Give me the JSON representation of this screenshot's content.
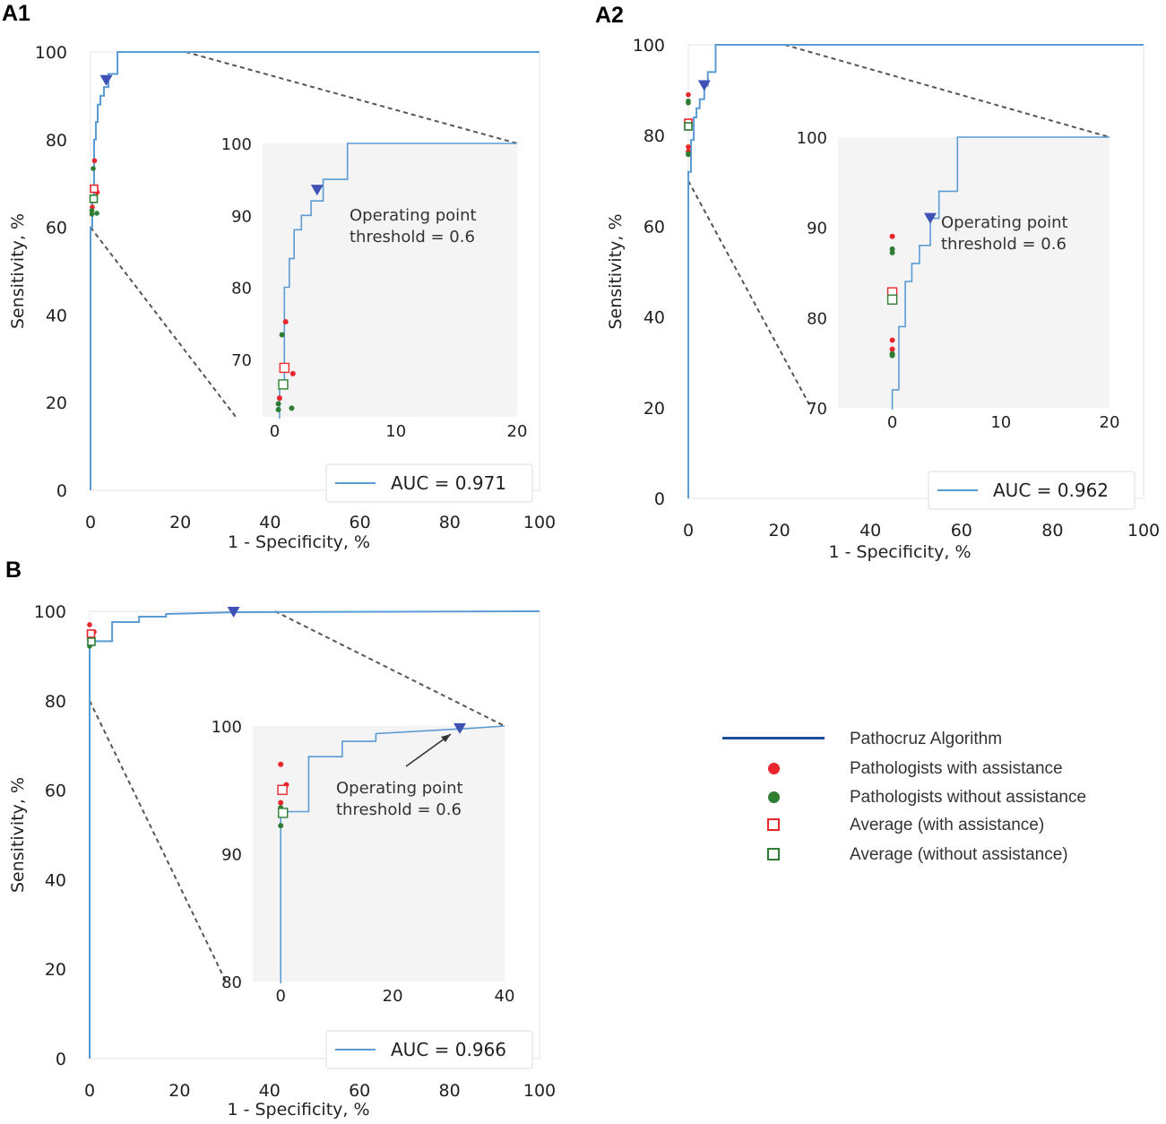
{
  "panels": [
    {
      "id": "A1",
      "label": "A1",
      "xlabel": "1 - Specificity, %",
      "ylabel": "Sensitivity, %",
      "auc_label": "AUC = 0.971"
    },
    {
      "id": "A2",
      "label": "A2",
      "xlabel": "1 - Specificity, %",
      "ylabel": "Sensitivity, %",
      "auc_label": "AUC = 0.962"
    },
    {
      "id": "B",
      "label": "B",
      "xlabel": "1 - Specificity, %",
      "ylabel": "Sensitivity, %",
      "auc_label": "AUC = 0.966"
    }
  ],
  "legend": {
    "items": [
      {
        "label": "Pathocruz Algorithm",
        "kind": "line",
        "color": "#1f4e9a"
      },
      {
        "label": "Pathologists with assistance",
        "kind": "dot",
        "color": "#e8262b"
      },
      {
        "label": "Pathologists without assistance",
        "kind": "dot",
        "color": "#2e7d32"
      },
      {
        "label": "Average (with assistance)",
        "kind": "square",
        "color": "#e8262b"
      },
      {
        "label": "Average (without assistance)",
        "kind": "square",
        "color": "#2e7d32"
      }
    ]
  },
  "colors": {
    "roc": "#5b9bd5",
    "operating_point": "#3f51b5",
    "with_assist": "#e8262b",
    "without_assist": "#2e7d32",
    "inset_bg": "#f4f4f4",
    "connector": "#555555"
  },
  "chart_data": [
    {
      "id": "A1",
      "type": "line",
      "title": "",
      "xlabel": "1 - Specificity, %",
      "ylabel": "Sensitivity, %",
      "xlim": [
        0,
        100
      ],
      "ylim": [
        0,
        100
      ],
      "xticks": [
        0,
        20,
        40,
        60,
        80,
        100
      ],
      "yticks": [
        0,
        20,
        40,
        60,
        80,
        100
      ],
      "series": [
        {
          "name": "Pathocruz Algorithm",
          "x": [
            0,
            0,
            0.4,
            0.4,
            0.8,
            0.8,
            1.2,
            1.2,
            1.6,
            1.6,
            2.2,
            2.2,
            3.0,
            3.0,
            4.0,
            4.0,
            6.0,
            6.0,
            100
          ],
          "y": [
            0,
            60,
            60,
            66,
            66,
            80,
            80,
            84,
            84,
            88,
            88,
            90,
            90,
            92,
            92,
            95,
            95,
            100,
            100
          ]
        }
      ],
      "operating_point": {
        "x": 3.5,
        "y": 93.5,
        "label": "Operating point\nthreshold = 0.6"
      },
      "with_assistance": [
        {
          "x": 0.9,
          "y": 75.2
        },
        {
          "x": 0.4,
          "y": 64.6
        },
        {
          "x": 1.5,
          "y": 68.0
        }
      ],
      "without_assistance": [
        {
          "x": 0.6,
          "y": 73.4
        },
        {
          "x": 0.3,
          "y": 63.8
        },
        {
          "x": 0.3,
          "y": 63.0
        },
        {
          "x": 1.4,
          "y": 63.2
        }
      ],
      "average_with": {
        "x": 0.8,
        "y": 68.8
      },
      "average_without": {
        "x": 0.7,
        "y": 66.5
      },
      "inset": {
        "xlim": [
          -1,
          20
        ],
        "ylim": [
          62,
          100
        ],
        "xticks": [
          0,
          10,
          20
        ],
        "yticks": [
          70,
          80,
          90,
          100
        ],
        "text": [
          "Operating point",
          "threshold = 0.6"
        ]
      },
      "zoom_source": {
        "x": [
          0,
          20
        ],
        "y": [
          60,
          100
        ]
      },
      "auc": "AUC = 0.971"
    },
    {
      "id": "A2",
      "type": "line",
      "title": "",
      "xlabel": "1 - Specificity, %",
      "ylabel": "Sensitivity, %",
      "xlim": [
        0,
        100
      ],
      "ylim": [
        0,
        100
      ],
      "xticks": [
        0,
        20,
        40,
        60,
        80,
        100
      ],
      "yticks": [
        0,
        20,
        40,
        60,
        80,
        100
      ],
      "series": [
        {
          "name": "Pathocruz Algorithm",
          "x": [
            0,
            0,
            0.6,
            0.6,
            1.2,
            1.2,
            1.8,
            1.8,
            2.5,
            2.5,
            3.5,
            3.5,
            4.3,
            4.3,
            6.0,
            6.0,
            100
          ],
          "y": [
            0,
            72,
            72,
            79,
            79,
            84,
            84,
            86,
            86,
            88,
            88,
            91,
            91,
            94,
            94,
            100,
            100
          ]
        }
      ],
      "operating_point": {
        "x": 3.5,
        "y": 91.0,
        "label": "Operating point\nthreshold = 0.6"
      },
      "with_assistance": [
        {
          "x": 0.0,
          "y": 89.0
        },
        {
          "x": 0.0,
          "y": 77.5
        },
        {
          "x": 0.0,
          "y": 76.5
        }
      ],
      "without_assistance": [
        {
          "x": 0.0,
          "y": 87.6
        },
        {
          "x": 0.0,
          "y": 87.2
        },
        {
          "x": 0.0,
          "y": 76.0
        },
        {
          "x": 0.0,
          "y": 75.8
        }
      ],
      "average_with": {
        "x": 0.0,
        "y": 82.8
      },
      "average_without": {
        "x": 0.0,
        "y": 82.0
      },
      "inset": {
        "xlim": [
          -5,
          20
        ],
        "ylim": [
          70,
          100
        ],
        "xticks": [
          0,
          10,
          20
        ],
        "yticks": [
          70,
          80,
          90,
          100
        ],
        "text": [
          "Operating point",
          "threshold = 0.6"
        ]
      },
      "zoom_source": {
        "x": [
          0,
          20
        ],
        "y": [
          70,
          100
        ]
      },
      "auc": "AUC = 0.962"
    },
    {
      "id": "B",
      "type": "line",
      "title": "",
      "xlabel": "1 - Specificity, %",
      "ylabel": "Sensitivity, %",
      "xlim": [
        0,
        100
      ],
      "ylim": [
        0,
        100
      ],
      "xticks": [
        0,
        20,
        40,
        60,
        80,
        100
      ],
      "yticks": [
        0,
        20,
        40,
        60,
        80,
        100
      ],
      "series": [
        {
          "name": "Pathocruz Algorithm",
          "x": [
            0,
            0,
            5,
            5,
            11,
            11,
            17,
            17,
            33,
            100
          ],
          "y": [
            0,
            93.3,
            93.3,
            97.6,
            97.6,
            98.8,
            98.8,
            99.4,
            99.8,
            100
          ]
        }
      ],
      "operating_point": {
        "x": 32,
        "y": 99.8,
        "label": "Operating point\nthreshold = 0.6"
      },
      "with_assistance": [
        {
          "x": 0.0,
          "y": 97.0
        },
        {
          "x": 1.0,
          "y": 95.4
        },
        {
          "x": 0.0,
          "y": 94.0
        }
      ],
      "without_assistance": [
        {
          "x": 0.0,
          "y": 93.6
        },
        {
          "x": 0.0,
          "y": 92.2
        }
      ],
      "average_with": {
        "x": 0.3,
        "y": 95.0
      },
      "average_without": {
        "x": 0.4,
        "y": 93.2
      },
      "inset": {
        "xlim": [
          -5,
          40
        ],
        "ylim": [
          80,
          100
        ],
        "xticks": [
          0,
          20,
          40
        ],
        "yticks": [
          80,
          90,
          100
        ],
        "text": [
          "Operating point",
          "threshold = 0.6"
        ]
      },
      "zoom_source": {
        "x": [
          0,
          40
        ],
        "y": [
          80,
          100
        ]
      },
      "auc": "AUC = 0.966"
    }
  ]
}
